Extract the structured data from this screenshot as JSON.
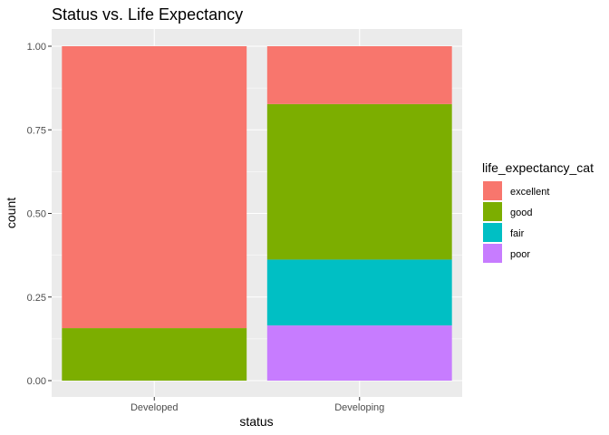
{
  "chart_data": {
    "type": "bar",
    "stacked": true,
    "title": "Status vs. Life Expectancy",
    "xlabel": "status",
    "ylabel": "count",
    "categories": [
      "Developed",
      "Developing"
    ],
    "ylim": [
      0,
      1
    ],
    "yticks": [
      "0.00",
      "0.25",
      "0.50",
      "0.75",
      "1.00"
    ],
    "legend": {
      "title": "life_expectancy_cat",
      "position": "right"
    },
    "series": [
      {
        "name": "excellent",
        "color": "#F8766D",
        "values": [
          0.843,
          0.173
        ]
      },
      {
        "name": "good",
        "color": "#7CAE00",
        "values": [
          0.157,
          0.465
        ]
      },
      {
        "name": "fair",
        "color": "#00BFC4",
        "values": [
          0.0,
          0.197
        ]
      },
      {
        "name": "poor",
        "color": "#C77CFF",
        "values": [
          0.0,
          0.165
        ]
      }
    ],
    "grid": true
  }
}
